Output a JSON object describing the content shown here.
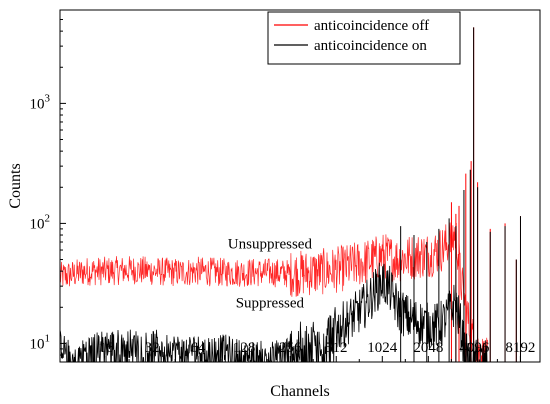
{
  "chart_data": {
    "type": "line",
    "title": "",
    "xlabel": "Channels",
    "ylabel": "Counts",
    "xscale": "log2",
    "yscale": "log10",
    "xlim": [
      8,
      11000
    ],
    "ylim": [
      7,
      6000
    ],
    "xticks": [
      16,
      32,
      64,
      128,
      256,
      512,
      1024,
      2048,
      4096,
      8192
    ],
    "xtick_labels": [
      "16",
      "32",
      "64",
      "128",
      "256",
      "512",
      "1024",
      "2048",
      "4096",
      "8192"
    ],
    "yticks": [
      10,
      100,
      1000
    ],
    "ytick_labels": [
      {
        "base": "10",
        "exp": "1"
      },
      {
        "base": "10",
        "exp": "2"
      },
      {
        "base": "10",
        "exp": "3"
      }
    ],
    "grid": false,
    "legend_position": "top-right",
    "annotations": [
      {
        "text": "Unsuppressed",
        "x": 120,
        "y": 62
      },
      {
        "text": "Suppressed",
        "x": 120,
        "y": 20
      }
    ],
    "series": [
      {
        "name": "anticoincidence off",
        "color": "#ff0000",
        "points": [
          [
            8,
            36
          ],
          [
            10,
            38
          ],
          [
            12,
            40
          ],
          [
            16,
            40
          ],
          [
            24,
            41
          ],
          [
            32,
            40
          ],
          [
            48,
            39
          ],
          [
            64,
            40
          ],
          [
            96,
            39
          ],
          [
            128,
            39
          ],
          [
            192,
            39
          ],
          [
            256,
            38
          ],
          [
            384,
            39
          ],
          [
            512,
            41
          ],
          [
            640,
            44
          ],
          [
            768,
            47
          ],
          [
            896,
            50
          ],
          [
            1024,
            54
          ],
          [
            1152,
            52
          ],
          [
            1280,
            50
          ],
          [
            1536,
            52
          ],
          [
            1792,
            54
          ],
          [
            2048,
            55
          ],
          [
            2304,
            58
          ],
          [
            2560,
            62
          ],
          [
            2816,
            70
          ],
          [
            3072,
            82
          ],
          [
            3200,
            60
          ],
          [
            3328,
            35
          ],
          [
            3584,
            20
          ],
          [
            3840,
            13
          ],
          [
            4096,
            10
          ],
          [
            4500,
            8
          ],
          [
            5000,
            7
          ]
        ],
        "peaks": [
          [
            2900,
            150
          ],
          [
            3100,
            120
          ],
          [
            3250,
            140
          ],
          [
            3600,
            260
          ],
          [
            3900,
            330
          ],
          [
            4050,
            4300
          ],
          [
            4300,
            220
          ],
          [
            5200,
            90
          ],
          [
            6500,
            100
          ],
          [
            7700,
            50
          ],
          [
            8200,
            115
          ]
        ]
      },
      {
        "name": "anticoincidence on",
        "color": "#000000",
        "points": [
          [
            8,
            10
          ],
          [
            10,
            7
          ],
          [
            12,
            9
          ],
          [
            16,
            10
          ],
          [
            24,
            10
          ],
          [
            32,
            10
          ],
          [
            48,
            9
          ],
          [
            64,
            9
          ],
          [
            96,
            9
          ],
          [
            128,
            8
          ],
          [
            192,
            8
          ],
          [
            256,
            9
          ],
          [
            384,
            11
          ],
          [
            512,
            13
          ],
          [
            640,
            16
          ],
          [
            768,
            20
          ],
          [
            896,
            26
          ],
          [
            1024,
            33
          ],
          [
            1152,
            28
          ],
          [
            1280,
            20
          ],
          [
            1536,
            16
          ],
          [
            1792,
            15
          ],
          [
            2048,
            14
          ],
          [
            2304,
            14
          ],
          [
            2560,
            15
          ],
          [
            2816,
            18
          ],
          [
            3072,
            22
          ],
          [
            3328,
            14
          ],
          [
            3584,
            8
          ],
          [
            3840,
            7
          ],
          [
            4096,
            7
          ],
          [
            5000,
            7
          ]
        ],
        "peaks": [
          [
            1350,
            95
          ],
          [
            1650,
            80
          ],
          [
            2000,
            70
          ],
          [
            2400,
            90
          ],
          [
            2800,
            110
          ],
          [
            3100,
            95
          ],
          [
            3500,
            190
          ],
          [
            3850,
            280
          ],
          [
            4050,
            4300
          ],
          [
            4300,
            200
          ],
          [
            5200,
            85
          ],
          [
            6500,
            95
          ],
          [
            7700,
            50
          ],
          [
            8200,
            115
          ]
        ]
      }
    ]
  }
}
